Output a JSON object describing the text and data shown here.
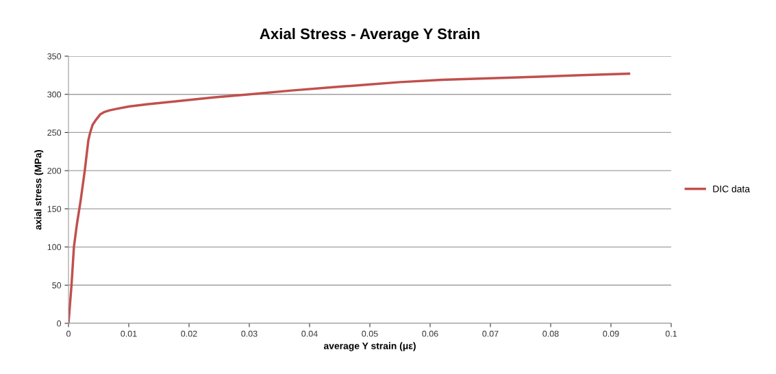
{
  "chart_data": {
    "type": "line",
    "title": "Axial Stress - Average Y Strain",
    "xlabel": "average Y strain (με)",
    "ylabel": "axial stress (MPa)",
    "series": [
      {
        "name": "DIC data",
        "color": "#c0504d",
        "x": [
          0,
          0.0003,
          0.0005,
          0.0009,
          0.0014,
          0.002,
          0.0027,
          0.0033,
          0.0036,
          0.004,
          0.0045,
          0.0053,
          0.006,
          0.0068,
          0.008,
          0.01,
          0.013,
          0.018,
          0.024,
          0.03,
          0.037,
          0.045,
          0.05,
          0.055,
          0.062,
          0.07,
          0.078,
          0.085,
          0.093
        ],
        "values": [
          0,
          30,
          50,
          100,
          130,
          160,
          200,
          240,
          250,
          260,
          266,
          274,
          277,
          279,
          281,
          284,
          287,
          291,
          296,
          300,
          305,
          310,
          313,
          316,
          319,
          321,
          323,
          325,
          327
        ]
      }
    ],
    "xlim": [
      0,
      0.1
    ],
    "xticks": [
      0,
      0.01,
      0.02,
      0.03,
      0.04,
      0.05,
      0.06,
      0.07,
      0.08,
      0.09,
      0.1
    ],
    "ylim": [
      0,
      350
    ],
    "yticks": [
      0,
      50,
      100,
      150,
      200,
      250,
      300,
      350
    ],
    "grid": "y",
    "legend": "right",
    "marker": "none",
    "line_style": "solid"
  }
}
